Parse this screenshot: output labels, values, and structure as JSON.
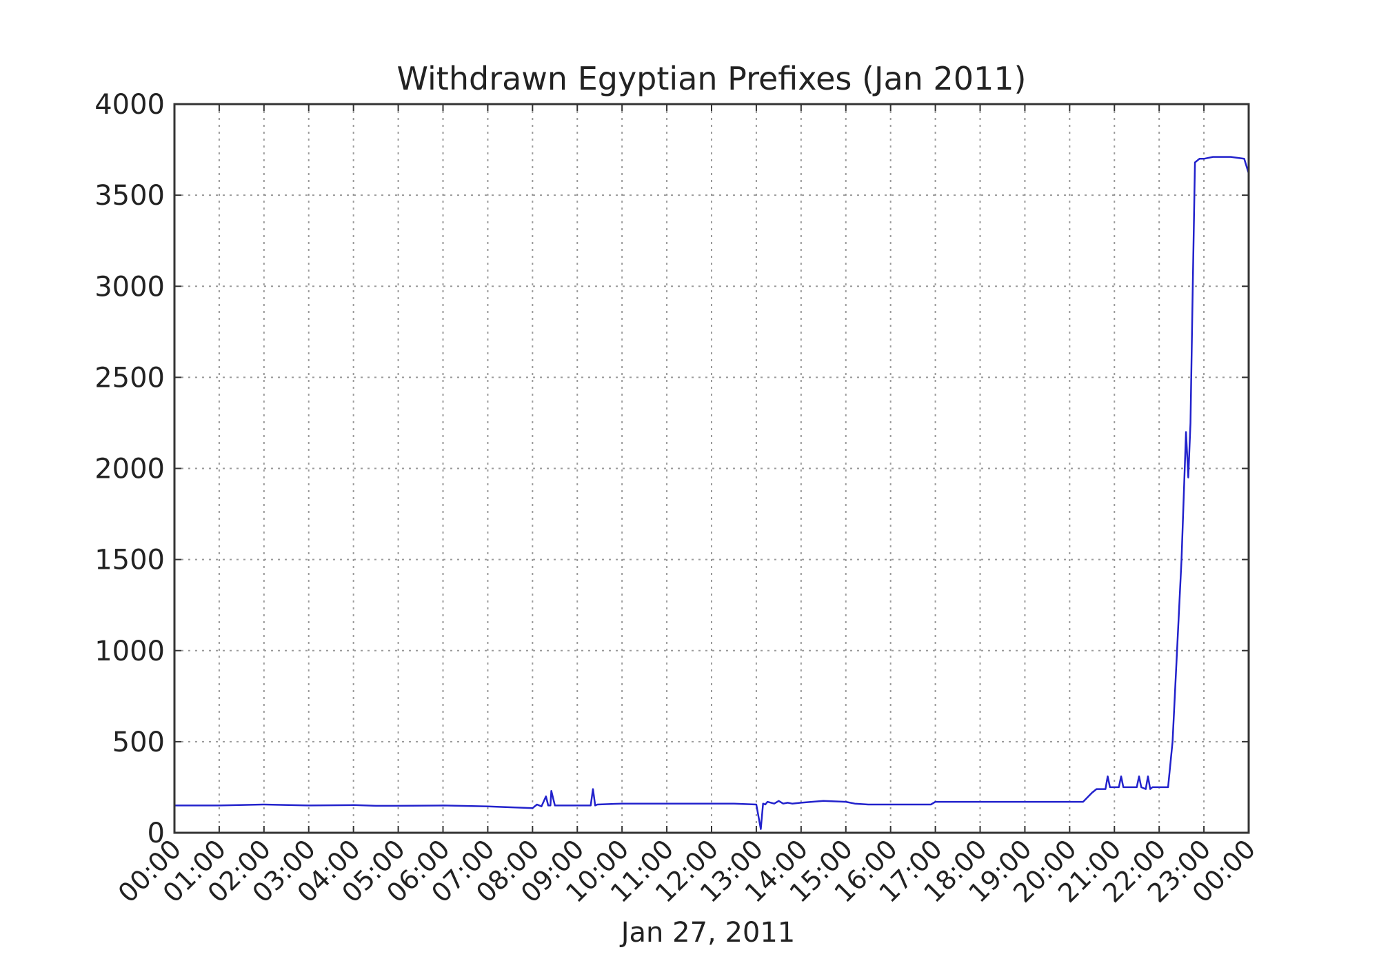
{
  "chart_data": {
    "type": "line",
    "title": "Withdrawn Egyptian Prefixes (Jan 2011)",
    "xlabel": "Jan 27, 2011",
    "ylabel": "",
    "x_unit": "hours",
    "xlim": [
      0,
      24
    ],
    "ylim": [
      0,
      4000
    ],
    "grid": true,
    "yticks": [
      0,
      500,
      1000,
      1500,
      2000,
      2500,
      3000,
      3500,
      4000
    ],
    "ytick_labels": [
      "0",
      "500",
      "1000",
      "1500",
      "2000",
      "2500",
      "3000",
      "3500",
      "4000"
    ],
    "xtick_labels": [
      "00:00",
      "01:00",
      "02:00",
      "03:00",
      "04:00",
      "05:00",
      "06:00",
      "07:00",
      "08:00",
      "09:00",
      "10:00",
      "11:00",
      "12:00",
      "13:00",
      "14:00",
      "15:00",
      "16:00",
      "17:00",
      "18:00",
      "19:00",
      "20:00",
      "21:00",
      "22:00",
      "23:00",
      "00:00"
    ],
    "series_color": "#2222cc",
    "series": [
      {
        "x": [
          0,
          1,
          2,
          3,
          4,
          4.5,
          5,
          6,
          7,
          7.5,
          8,
          8.1,
          8.2,
          8.3,
          8.35,
          8.4,
          8.42,
          8.5,
          9,
          9.3,
          9.35,
          9.4,
          9.45,
          10,
          10.2,
          11,
          12,
          12.5,
          13,
          13.1,
          13.15,
          13.2,
          13.25,
          13.4,
          13.5,
          13.6,
          13.7,
          13.8,
          14,
          14.5,
          15,
          15.2,
          15.5,
          16,
          16.5,
          16.9,
          17,
          17.5,
          18,
          19,
          20,
          20.3,
          20.5,
          20.6,
          20.8,
          20.85,
          20.9,
          21.1,
          21.15,
          21.2,
          21.5,
          21.55,
          21.6,
          21.7,
          21.75,
          21.8,
          21.85,
          22.2,
          22.3,
          22.4,
          22.5,
          22.6,
          22.65,
          22.7,
          22.75,
          22.8,
          22.9,
          23,
          23.2,
          23.4,
          23.6,
          23.9,
          24
        ],
        "y": [
          150,
          150,
          155,
          150,
          152,
          148,
          148,
          150,
          145,
          140,
          135,
          155,
          145,
          200,
          150,
          150,
          230,
          150,
          150,
          150,
          240,
          150,
          155,
          160,
          160,
          160,
          160,
          160,
          155,
          20,
          160,
          155,
          170,
          160,
          175,
          160,
          165,
          160,
          165,
          175,
          170,
          160,
          155,
          155,
          155,
          155,
          170,
          170,
          170,
          170,
          170,
          170,
          220,
          240,
          240,
          310,
          250,
          250,
          310,
          250,
          250,
          310,
          250,
          240,
          310,
          240,
          250,
          250,
          500,
          1000,
          1500,
          2200,
          1950,
          2250,
          3000,
          3680,
          3700,
          3700,
          3710,
          3710,
          3710,
          3700,
          3620
        ]
      }
    ]
  }
}
